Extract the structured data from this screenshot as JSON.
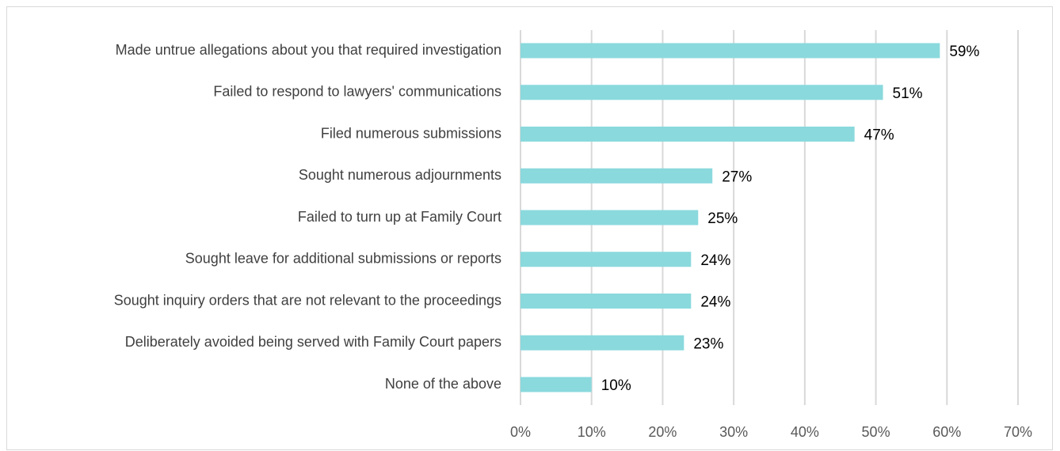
{
  "chart_data": {
    "type": "bar",
    "orientation": "horizontal",
    "categories": [
      "Made untrue allegations about you that required investigation",
      "Failed to respond to lawyers' communications",
      "Filed numerous submissions",
      "Sought numerous adjournments",
      "Failed to turn up at Family Court",
      "Sought leave for additional submissions or reports",
      "Sought inquiry orders that are not relevant to the proceedings",
      "Deliberately avoided being served with Family Court papers",
      "None of the above"
    ],
    "values": [
      59,
      51,
      47,
      27,
      25,
      24,
      24,
      23,
      10
    ],
    "value_labels": [
      "59%",
      "51%",
      "47%",
      "27%",
      "25%",
      "24%",
      "24%",
      "23%",
      "10%"
    ],
    "color": "#8ad9dd",
    "xlim": [
      0,
      70
    ],
    "xticks": [
      {
        "value": 0,
        "label": "0%"
      },
      {
        "value": 10,
        "label": "10%"
      },
      {
        "value": 20,
        "label": "20%"
      },
      {
        "value": 30,
        "label": "30%"
      },
      {
        "value": 40,
        "label": "40%"
      },
      {
        "value": 50,
        "label": "50%"
      },
      {
        "value": 60,
        "label": "60%"
      },
      {
        "value": 70,
        "label": "70%"
      }
    ],
    "grid": true
  }
}
